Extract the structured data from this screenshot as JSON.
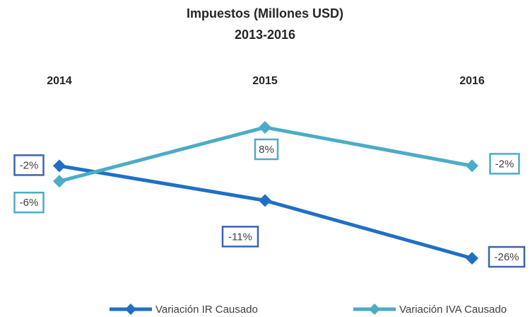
{
  "chart_data": {
    "type": "line",
    "title": "Impuestos (Millones USD)",
    "subtitle": "2013-2016",
    "categories": [
      "2014",
      "2015",
      "2016"
    ],
    "series": [
      {
        "name": "Variación IR Causado",
        "color": "#1f6fc5",
        "values": [
          -2,
          -11,
          -26
        ],
        "value_labels": [
          "-2%",
          "-11%",
          "-26%"
        ]
      },
      {
        "name": "Variación IVA Causado",
        "color": "#4bacc6",
        "values": [
          -6,
          8,
          -2
        ],
        "value_labels": [
          "-6%",
          "8%",
          "-2%"
        ]
      }
    ],
    "legend": "bottom"
  }
}
